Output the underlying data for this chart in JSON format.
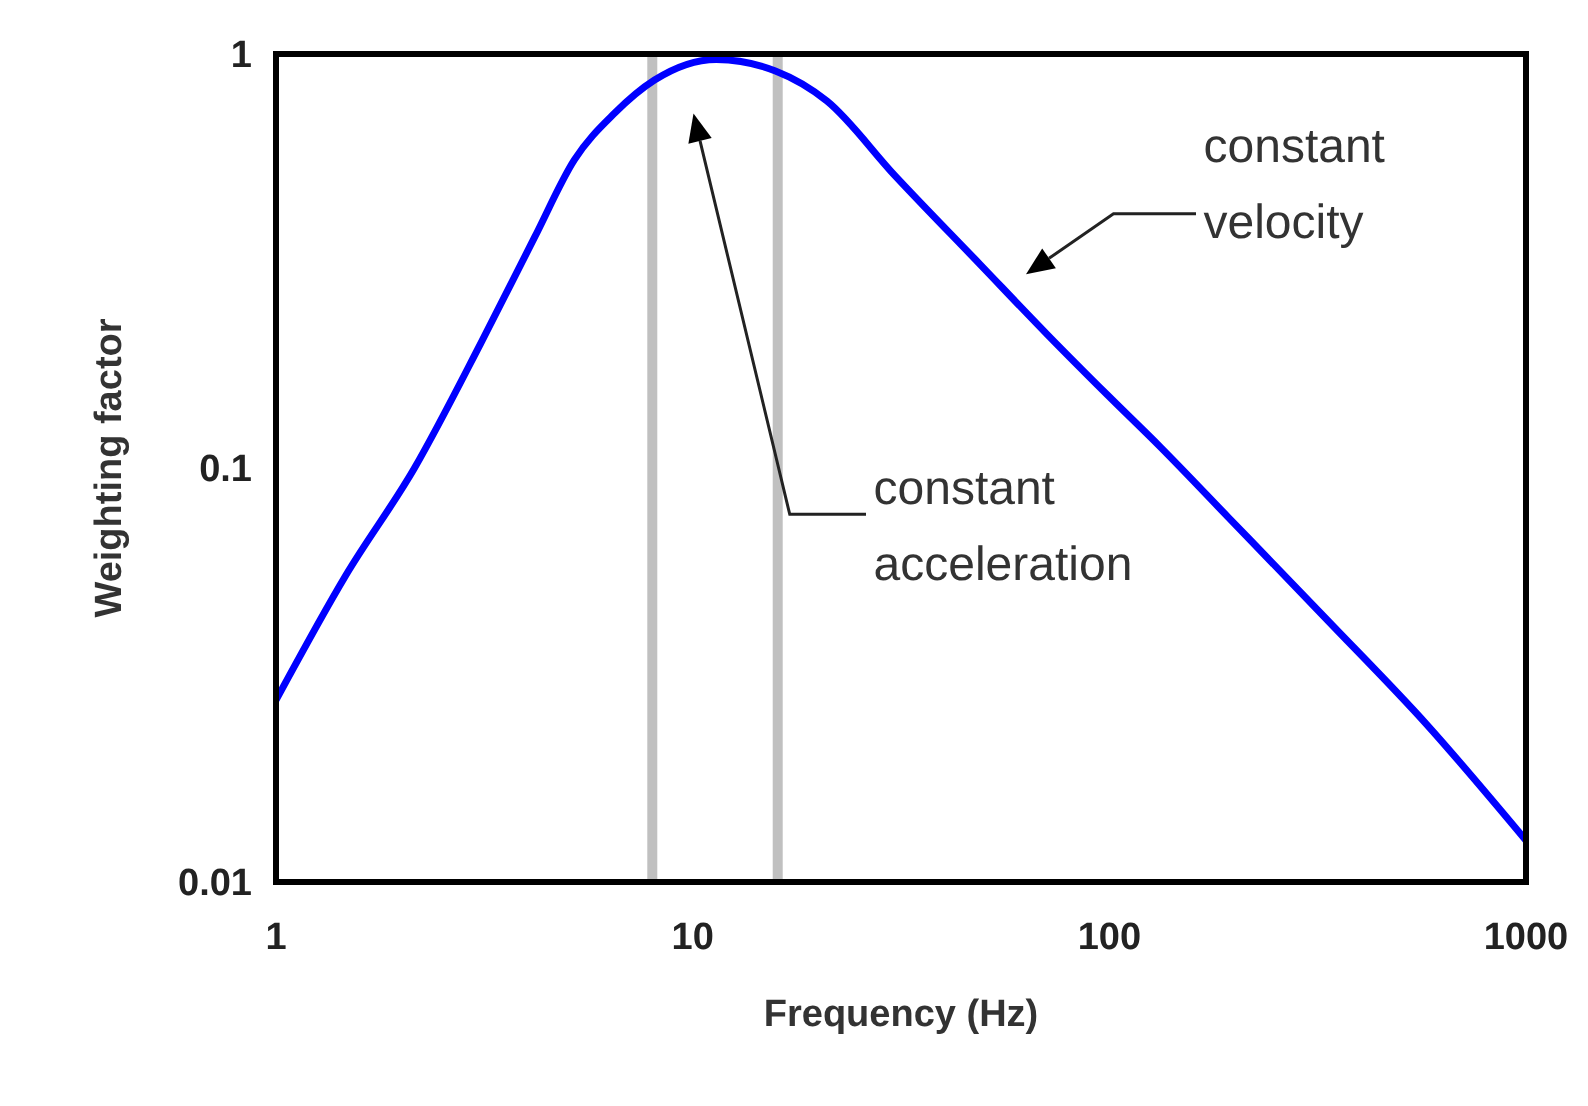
{
  "chart_data": {
    "type": "line",
    "xlabel": "Frequency (Hz)",
    "ylabel": "Weighting factor",
    "log": "xy",
    "xlim": [
      1,
      1000
    ],
    "ylim": [
      0.01,
      1
    ],
    "xticks": [
      1,
      10,
      100,
      1000
    ],
    "yticks": [
      0.01,
      0.1,
      1
    ],
    "marker": "none",
    "line_style": "solid",
    "series": [
      {
        "color": "#0000ff",
        "x": [
          1,
          1.47,
          2.15,
          3.1,
          4.17,
          5.2,
          6.5,
          8.1,
          11.4,
          15.8,
          21,
          30.5,
          49,
          71,
          99,
          133,
          193,
          333,
          578,
          1000
        ],
        "values": [
          0.0275,
          0.055,
          0.1,
          0.2,
          0.36,
          0.555,
          0.72,
          0.865,
          0.97,
          0.91,
          0.77,
          0.51,
          0.31,
          0.21,
          0.15,
          0.112,
          0.076,
          0.043,
          0.024,
          0.0126
        ]
      }
    ],
    "ref_lines": [
      {
        "axis": "x",
        "value": 8,
        "color": "#c0c0c0"
      },
      {
        "axis": "x",
        "value": 16,
        "color": "#c0c0c0"
      }
    ],
    "annotations": [
      "constant acceleration",
      "constant velocity"
    ]
  }
}
